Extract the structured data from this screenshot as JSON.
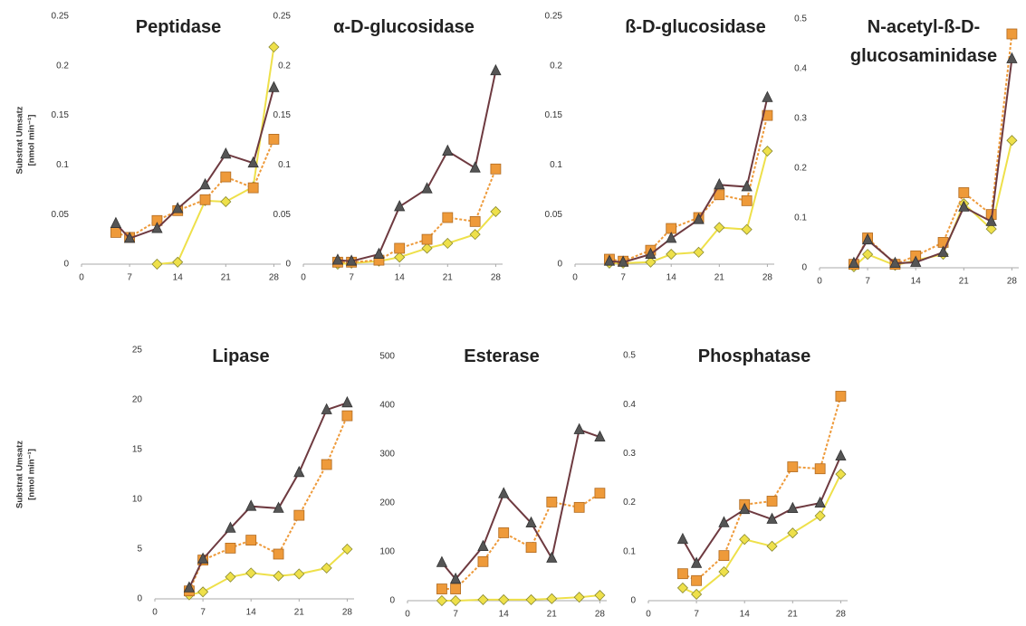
{
  "chart_data": [
    {
      "type": "line",
      "title": "Peptidase",
      "ylabel": [
        "Substrat Umsatz",
        "[nmol min⁻¹]"
      ],
      "x": [
        5,
        7,
        11,
        14,
        18,
        21,
        25,
        28
      ],
      "xlim": [
        0,
        29
      ],
      "xticks": [
        0,
        7,
        14,
        21,
        28
      ],
      "ylim": [
        0,
        0.25
      ],
      "yticks": [
        0,
        0.05,
        0.1,
        0.15,
        0.2,
        0.25
      ],
      "series": [
        {
          "color": "#eee04a",
          "marker": "diamond",
          "dash": "solid",
          "values": [
            null,
            null,
            0,
            0.002,
            0.064,
            0.063,
            0.078,
            0.219
          ]
        },
        {
          "color": "#ee9a3a",
          "marker": "square",
          "dash": "dotted",
          "values": [
            0.032,
            0.027,
            0.044,
            0.054,
            0.065,
            0.088,
            0.077,
            0.126
          ]
        },
        {
          "color": "#6e3a40",
          "marker": "triangle",
          "dash": "solid",
          "values": [
            0.041,
            0.026,
            0.036,
            0.056,
            0.08,
            0.111,
            0.102,
            0.178
          ]
        }
      ]
    },
    {
      "type": "line",
      "title": "α-D-glucosidase",
      "x": [
        5,
        7,
        11,
        14,
        18,
        21,
        25,
        28
      ],
      "xlim": [
        0,
        29
      ],
      "xticks": [
        0,
        7,
        14,
        21,
        28
      ],
      "ylim": [
        0,
        0.25
      ],
      "yticks": [
        0,
        0.05,
        0.1,
        0.15,
        0.2,
        0.25
      ],
      "series": [
        {
          "color": "#eee04a",
          "marker": "diamond",
          "dash": "solid",
          "values": [
            0,
            0.001,
            0.003,
            0.007,
            0.016,
            0.021,
            0.03,
            0.053
          ]
        },
        {
          "color": "#ee9a3a",
          "marker": "square",
          "dash": "dotted",
          "values": [
            0.002,
            0.002,
            0.004,
            0.016,
            0.025,
            0.047,
            0.043,
            0.096
          ]
        },
        {
          "color": "#6e3a40",
          "marker": "triangle",
          "dash": "solid",
          "values": [
            0.004,
            0.003,
            0.01,
            0.058,
            0.076,
            0.114,
            0.097,
            0.195
          ]
        }
      ]
    },
    {
      "type": "line",
      "title": "ß-D-glucosidase",
      "x": [
        5,
        7,
        11,
        14,
        18,
        21,
        25,
        28
      ],
      "xlim": [
        0,
        29
      ],
      "xticks": [
        0,
        7,
        14,
        21,
        28
      ],
      "ylim": [
        0,
        0.25
      ],
      "yticks": [
        0,
        0.05,
        0.1,
        0.15,
        0.2,
        0.25
      ],
      "series": [
        {
          "color": "#eee04a",
          "marker": "diamond",
          "dash": "solid",
          "values": [
            0.001,
            0.001,
            0.002,
            0.01,
            0.012,
            0.037,
            0.035,
            0.114
          ]
        },
        {
          "color": "#ee9a3a",
          "marker": "square",
          "dash": "dotted",
          "values": [
            0.005,
            0.003,
            0.014,
            0.036,
            0.047,
            0.07,
            0.064,
            0.15
          ]
        },
        {
          "color": "#6e3a40",
          "marker": "triangle",
          "dash": "solid",
          "values": [
            0.003,
            0.002,
            0.01,
            0.026,
            0.045,
            0.08,
            0.078,
            0.168
          ]
        }
      ]
    },
    {
      "type": "line",
      "title": "N-acetyl-ß-D-glucosaminidase",
      "x": [
        5,
        7,
        11,
        14,
        18,
        21,
        25,
        28
      ],
      "xlim": [
        0,
        29
      ],
      "xticks": [
        0,
        7,
        14,
        21,
        28
      ],
      "ylim": [
        0,
        0.5
      ],
      "yticks": [
        0,
        0.1,
        0.2,
        0.3,
        0.4,
        0.5
      ],
      "series": [
        {
          "color": "#eee04a",
          "marker": "diamond",
          "dash": "solid",
          "values": [
            0.002,
            0.027,
            0.005,
            0.015,
            0.027,
            0.129,
            0.078,
            0.256
          ]
        },
        {
          "color": "#ee9a3a",
          "marker": "square",
          "dash": "dotted",
          "values": [
            0.007,
            0.06,
            0.007,
            0.024,
            0.051,
            0.151,
            0.107,
            0.47
          ]
        },
        {
          "color": "#6e3a40",
          "marker": "triangle",
          "dash": "solid",
          "values": [
            0.009,
            0.056,
            0.009,
            0.011,
            0.031,
            0.122,
            0.093,
            0.42
          ]
        }
      ]
    },
    {
      "type": "line",
      "title": "Lipase",
      "ylabel": [
        "Substrat Umsatz",
        "[nmol min⁻¹]"
      ],
      "x": [
        5,
        7,
        11,
        14,
        18,
        21,
        25,
        28
      ],
      "xlim": [
        0,
        29
      ],
      "xticks": [
        0,
        7,
        14,
        21,
        28
      ],
      "ylim": [
        0,
        25
      ],
      "yticks": [
        0,
        5,
        10,
        15,
        20,
        25
      ],
      "series": [
        {
          "color": "#eee04a",
          "marker": "diamond",
          "dash": "solid",
          "values": [
            0.4,
            0.7,
            2.2,
            2.6,
            2.3,
            2.5,
            3.1,
            5.0
          ]
        },
        {
          "color": "#ee9a3a",
          "marker": "square",
          "dash": "dotted",
          "values": [
            0.8,
            3.9,
            5.1,
            5.9,
            4.5,
            8.4,
            13.5,
            18.4
          ]
        },
        {
          "color": "#6e3a40",
          "marker": "triangle",
          "dash": "solid",
          "values": [
            1.1,
            4.0,
            7.1,
            9.3,
            9.1,
            12.7,
            19.0,
            19.7
          ]
        }
      ]
    },
    {
      "type": "line",
      "title": "Esterase",
      "x": [
        5,
        7,
        11,
        14,
        18,
        21,
        25,
        28
      ],
      "xlim": [
        0,
        29
      ],
      "xticks": [
        0,
        7,
        14,
        21,
        28
      ],
      "ylim": [
        0,
        500
      ],
      "yticks": [
        0,
        100,
        200,
        300,
        400,
        500
      ],
      "series": [
        {
          "color": "#eee04a",
          "marker": "diamond",
          "dash": "solid",
          "values": [
            0,
            0,
            2,
            2,
            2,
            4,
            7,
            11
          ]
        },
        {
          "color": "#ee9a3a",
          "marker": "square",
          "dash": "dotted",
          "values": [
            24,
            24,
            80,
            139,
            109,
            202,
            191,
            220
          ]
        },
        {
          "color": "#6e3a40",
          "marker": "triangle",
          "dash": "solid",
          "values": [
            78,
            44,
            111,
            219,
            159,
            87,
            350,
            335
          ]
        }
      ]
    },
    {
      "type": "line",
      "title": "Phosphatase",
      "x": [
        5,
        7,
        11,
        14,
        18,
        21,
        25,
        28
      ],
      "xlim": [
        0,
        29
      ],
      "xticks": [
        0,
        7,
        14,
        21,
        28
      ],
      "ylim": [
        0,
        0.5
      ],
      "yticks": [
        0,
        0.1,
        0.2,
        0.3,
        0.4,
        0.5
      ],
      "series": [
        {
          "color": "#eee04a",
          "marker": "diamond",
          "dash": "solid",
          "values": [
            0.026,
            0.013,
            0.059,
            0.125,
            0.111,
            0.138,
            0.173,
            0.258
          ]
        },
        {
          "color": "#ee9a3a",
          "marker": "square",
          "dash": "dotted",
          "values": [
            0.055,
            0.041,
            0.092,
            0.196,
            0.203,
            0.273,
            0.269,
            0.417
          ]
        },
        {
          "color": "#6e3a40",
          "marker": "triangle",
          "dash": "solid",
          "values": [
            0.125,
            0.076,
            0.159,
            0.186,
            0.166,
            0.188,
            0.199,
            0.295
          ]
        }
      ]
    }
  ]
}
